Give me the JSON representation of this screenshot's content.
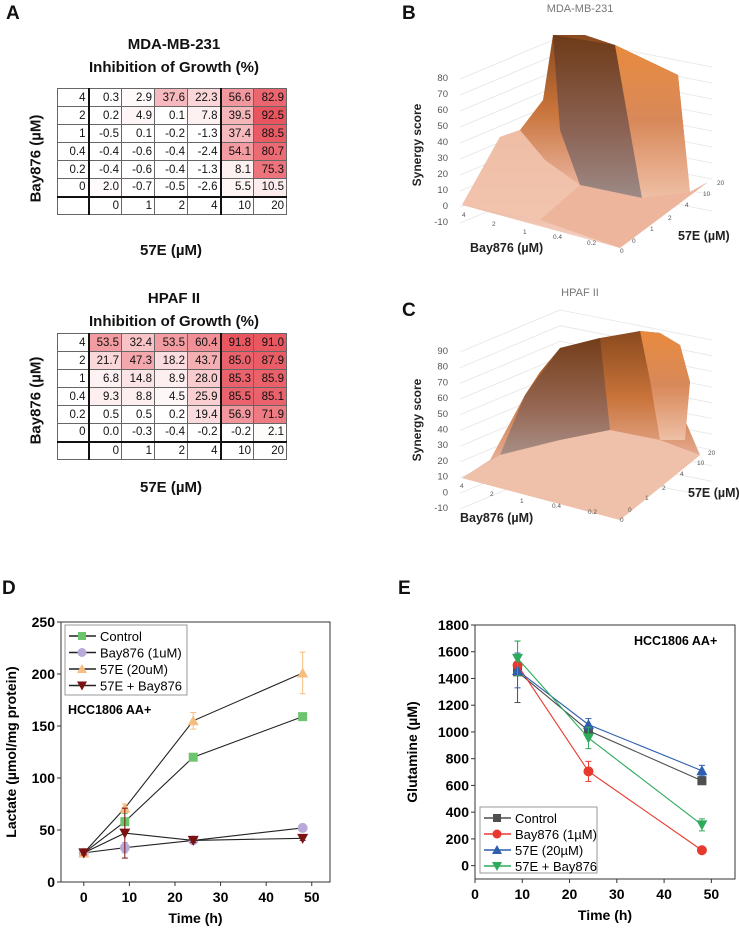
{
  "panels": {
    "a": "A",
    "b": "B",
    "c": "C",
    "d": "D",
    "e": "E"
  },
  "tables": [
    {
      "title": "MDA-MB-231",
      "subtitle": "Inhibition of Growth (%)",
      "ylabel": "Bay876 (µM)",
      "xlabel": "57E (µM)",
      "columns": [
        "0",
        "1",
        "2",
        "4",
        "10",
        "20"
      ],
      "rows": [
        {
          "label": "4",
          "values": [
            "0.3",
            "2.9",
            "37.6",
            "22.3",
            "56.6",
            "82.9"
          ]
        },
        {
          "label": "2",
          "values": [
            "0.2",
            "4.9",
            "0.1",
            "7.8",
            "39.5",
            "92.5"
          ]
        },
        {
          "label": "1",
          "values": [
            "-0.5",
            "0.1",
            "-0.2",
            "-1.3",
            "37.4",
            "88.5"
          ]
        },
        {
          "label": "0.4",
          "values": [
            "-0.4",
            "-0.6",
            "-0.4",
            "-2.4",
            "54.1",
            "80.7"
          ]
        },
        {
          "label": "0.2",
          "values": [
            "-0.4",
            "-0.6",
            "-0.4",
            "-1.3",
            "8.1",
            "75.3"
          ]
        },
        {
          "label": "0",
          "values": [
            "2.0",
            "-0.7",
            "-0.5",
            "-2.6",
            "5.5",
            "10.5"
          ]
        }
      ]
    },
    {
      "title": "HPAF II",
      "subtitle": "Inhibition of Growth (%)",
      "ylabel": "Bay876 (µM)",
      "xlabel": "57E (µM)",
      "columns": [
        "0",
        "1",
        "2",
        "4",
        "10",
        "20"
      ],
      "rows": [
        {
          "label": "4",
          "values": [
            "53.5",
            "32.4",
            "53.5",
            "60.4",
            "91.8",
            "91.0"
          ]
        },
        {
          "label": "2",
          "values": [
            "21.7",
            "47.3",
            "18.2",
            "43.7",
            "85.0",
            "87.9"
          ]
        },
        {
          "label": "1",
          "values": [
            "6.8",
            "14.8",
            "8.9",
            "28.0",
            "85.3",
            "85.9"
          ]
        },
        {
          "label": "0.4",
          "values": [
            "9.3",
            "8.8",
            "4.5",
            "25.9",
            "85.5",
            "85.1"
          ]
        },
        {
          "label": "0.2",
          "values": [
            "0.5",
            "0.5",
            "0.2",
            "19.4",
            "56.9",
            "71.9"
          ]
        },
        {
          "label": "0",
          "values": [
            "0.0",
            "-0.3",
            "-0.4",
            "-0.2",
            "-0.2",
            "2.1"
          ]
        }
      ]
    }
  ],
  "heat_color": "#e8505a",
  "chart_data": [
    {
      "type": "surface",
      "title": "MDA-MB-231",
      "zlabel": "Synergy score",
      "xlabel": "Bay876 (µM)",
      "ylabel": "57E (µM)",
      "zticks": [
        "80",
        "70",
        "60",
        "50",
        "40",
        "30",
        "20",
        "10",
        "0",
        "-10"
      ],
      "xticks": [
        "4",
        "2",
        "1",
        "0.4",
        "0.2",
        "0"
      ],
      "yticks": [
        "0",
        "1",
        "2",
        "4",
        "10",
        "20"
      ],
      "colors": [
        "#8a4a1e",
        "#e07a30",
        "#f2c4ae"
      ]
    },
    {
      "type": "surface",
      "title": "HPAF II",
      "zlabel": "Synergy score",
      "xlabel": "Bay876 (µM)",
      "ylabel": "57E (µM)",
      "zticks": [
        "90",
        "80",
        "70",
        "60",
        "50",
        "40",
        "30",
        "20",
        "10",
        "0",
        "-10"
      ],
      "xticks": [
        "4",
        "2",
        "1",
        "0.4",
        "0.2",
        "0"
      ],
      "yticks": [
        "0",
        "1",
        "2",
        "4",
        "10",
        "20"
      ],
      "colors": [
        "#8a4a1e",
        "#e07a30",
        "#f2c4ae"
      ]
    },
    {
      "type": "line",
      "xlabel": "Time (h)",
      "ylabel": "Lactate (µmol/mg protein)",
      "annotation": "HCC1806 AA+",
      "xlim": [
        -5,
        54
      ],
      "ylim": [
        0,
        250
      ],
      "xticks": [
        0,
        10,
        20,
        30,
        40,
        50
      ],
      "yticks": [
        0,
        50,
        100,
        150,
        200,
        250
      ],
      "legend": "top-left",
      "grid": false,
      "series": [
        {
          "name": "Control",
          "marker": "square",
          "color": "#6cc46c",
          "x": [
            0,
            9,
            24,
            48
          ],
          "y": [
            28,
            58,
            120,
            159
          ],
          "err": [
            2,
            8,
            3,
            3
          ]
        },
        {
          "name": "Bay876 (1uM)",
          "marker": "circle",
          "color": "#b9a9d8",
          "x": [
            0,
            9,
            24,
            48
          ],
          "y": [
            28,
            33,
            40,
            52
          ],
          "err": [
            2,
            5,
            2,
            2
          ]
        },
        {
          "name": "57E (20uM)",
          "marker": "triangle-up",
          "color": "#f6bd80",
          "x": [
            0,
            9,
            24,
            48
          ],
          "y": [
            28,
            71,
            155,
            201
          ],
          "err": [
            2,
            4,
            8,
            20
          ]
        },
        {
          "name": "57E + Bay876",
          "marker": "triangle-down",
          "color": "#7b1212",
          "x": [
            0,
            9,
            24,
            48
          ],
          "y": [
            28,
            47,
            40,
            42
          ],
          "err": [
            2,
            24,
            2,
            2
          ]
        }
      ]
    },
    {
      "type": "line",
      "xlabel": "Time (h)",
      "ylabel": "Glutamine (µM)",
      "annotation": "HCC1806 AA+",
      "xlim": [
        0,
        55
      ],
      "ylim": [
        -100,
        1800
      ],
      "xticks": [
        0,
        10,
        20,
        30,
        40,
        50
      ],
      "yticks": [
        0,
        200,
        400,
        600,
        800,
        1000,
        1200,
        1400,
        1600,
        1800
      ],
      "legend": "bottom-left",
      "grid": false,
      "series": [
        {
          "name": "Control",
          "marker": "square",
          "color": "#4f4f4f",
          "x": [
            9,
            24,
            48
          ],
          "y": [
            1450,
            1010,
            635
          ],
          "err": [
            230,
            30,
            25
          ]
        },
        {
          "name": "Bay876 (1µM)",
          "marker": "circle",
          "color": "#e8392f",
          "x": [
            9,
            24,
            48
          ],
          "y": [
            1500,
            705,
            115
          ],
          "err": [
            60,
            75,
            15
          ]
        },
        {
          "name": "57E (20µM)",
          "marker": "triangle-up",
          "color": "#2f5fb0",
          "x": [
            9,
            24,
            48
          ],
          "y": [
            1460,
            1055,
            710
          ],
          "err": [
            130,
            45,
            40
          ]
        },
        {
          "name": "57E + Bay876",
          "marker": "triangle-down",
          "color": "#2eab5a",
          "x": [
            9,
            24,
            48
          ],
          "y": [
            1550,
            955,
            305
          ],
          "err": [
            130,
            80,
            45
          ]
        }
      ]
    }
  ]
}
